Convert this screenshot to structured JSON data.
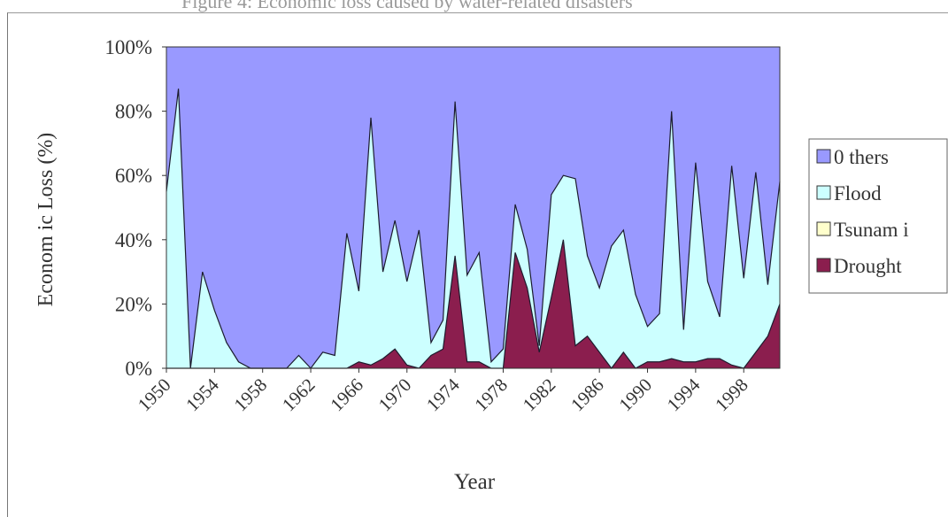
{
  "caption": "Figure 4: Economic loss caused by water-related disasters",
  "chart_data": {
    "type": "area",
    "stacked": true,
    "percent": true,
    "title": "",
    "xlabel": "Year",
    "ylabel": "Econom ic Loss (%)",
    "ylim": [
      0,
      100
    ],
    "yticks": [
      "0%",
      "20%",
      "40%",
      "60%",
      "80%",
      "100%"
    ],
    "xticks": [
      "1950",
      "1954",
      "1958",
      "1962",
      "1966",
      "1970",
      "1974",
      "1978",
      "1982",
      "1986",
      "1990",
      "1994",
      "1998"
    ],
    "legend_position": "right",
    "x": [
      1950,
      1951,
      1952,
      1953,
      1954,
      1955,
      1956,
      1957,
      1958,
      1959,
      1960,
      1961,
      1962,
      1963,
      1964,
      1965,
      1966,
      1967,
      1968,
      1969,
      1970,
      1971,
      1972,
      1973,
      1974,
      1975,
      1976,
      1977,
      1978,
      1979,
      1980,
      1981,
      1982,
      1983,
      1984,
      1985,
      1986,
      1987,
      1988,
      1989,
      1990,
      1991,
      1992,
      1993,
      1994,
      1995,
      1996,
      1997,
      1998,
      1999,
      2000,
      2001
    ],
    "series": [
      {
        "name": "Drought",
        "color": "#8b1e4e",
        "values": [
          0,
          0,
          0,
          0,
          0,
          0,
          0,
          0,
          0,
          0,
          0,
          0,
          0,
          0,
          0,
          0,
          2,
          1,
          3,
          6,
          1,
          0,
          4,
          6,
          35,
          2,
          2,
          0,
          0,
          36,
          25,
          5,
          22,
          40,
          7,
          10,
          5,
          0,
          5,
          0,
          2,
          2,
          3,
          2,
          2,
          3,
          3,
          1,
          0,
          5,
          10,
          20
        ]
      },
      {
        "name": "Tsunam i",
        "color": "#ffffcc",
        "values": [
          0,
          0,
          0,
          0,
          0,
          0,
          0,
          0,
          0,
          0,
          0,
          0,
          0,
          0,
          0,
          0,
          0,
          0,
          0,
          0,
          0,
          0,
          0,
          0,
          0,
          0,
          0,
          0,
          0,
          0,
          0,
          0,
          0,
          0,
          0,
          0,
          0,
          0,
          0,
          0,
          0,
          0,
          0,
          0,
          0,
          0,
          0,
          0,
          0,
          0,
          0,
          0
        ]
      },
      {
        "name": "Flood",
        "color": "#ccffff",
        "values": [
          55,
          87,
          0,
          30,
          18,
          8,
          2,
          0,
          0,
          0,
          0,
          4,
          0,
          5,
          4,
          42,
          22,
          77,
          27,
          40,
          26,
          43,
          4,
          9,
          48,
          27,
          34,
          2,
          6,
          15,
          12,
          2,
          32,
          20,
          52,
          25,
          20,
          38,
          38,
          23,
          11,
          15,
          77,
          10,
          62,
          24,
          13,
          62,
          28,
          56,
          16,
          38
        ]
      },
      {
        "name": "0 thers",
        "color": "#9999ff",
        "values": [
          45,
          13,
          100,
          70,
          82,
          92,
          98,
          100,
          100,
          100,
          100,
          96,
          100,
          95,
          96,
          58,
          76,
          22,
          70,
          54,
          73,
          57,
          92,
          85,
          17,
          71,
          64,
          98,
          94,
          49,
          63,
          93,
          46,
          40,
          41,
          65,
          75,
          62,
          57,
          77,
          87,
          83,
          20,
          88,
          36,
          73,
          84,
          37,
          72,
          39,
          74,
          42
        ]
      }
    ]
  }
}
